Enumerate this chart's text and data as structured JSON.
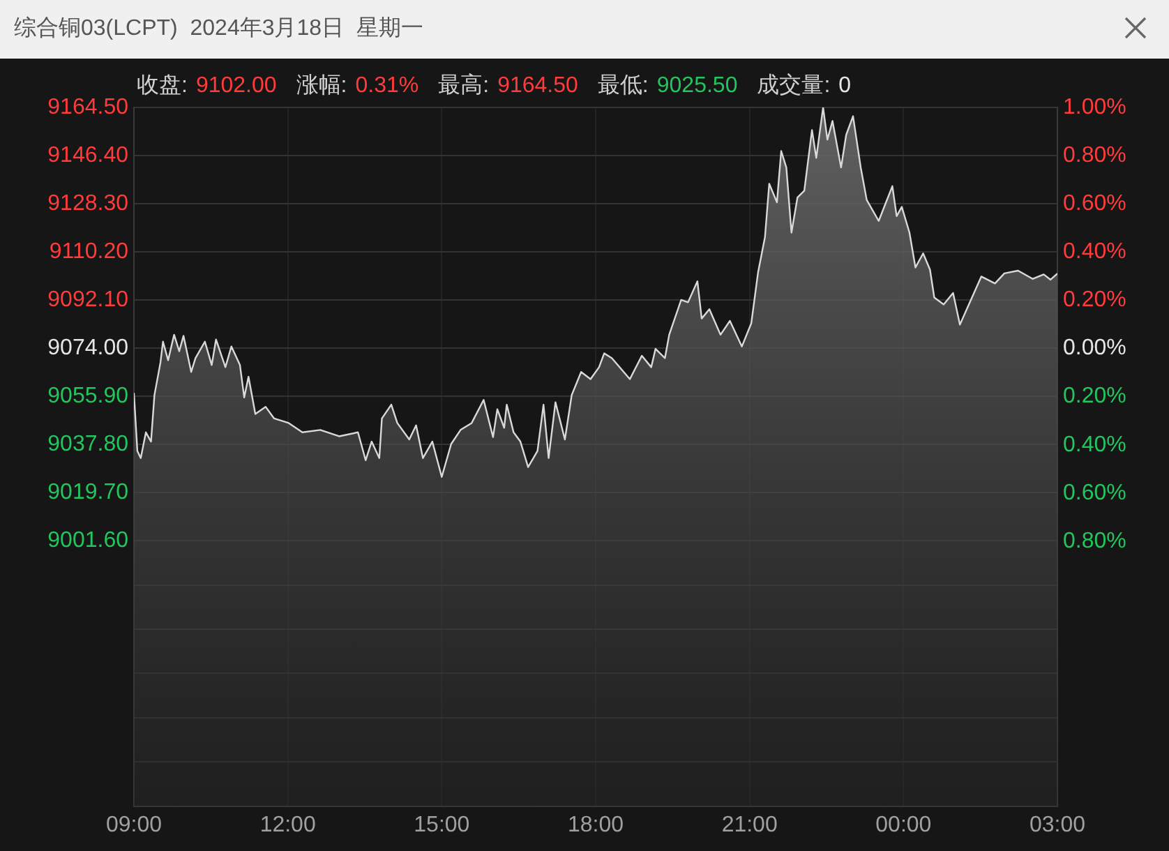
{
  "chart_data": {
    "type": "area",
    "title": "综合铜03(LCPT)  2024年3月18日  星期一",
    "annotations": [
      "收盘:",
      "9102.00",
      "涨幅:",
      "0.31%",
      "最高:",
      "9164.50",
      "最低:",
      "9025.50",
      "成交量:",
      "0"
    ],
    "x": [
      "2024-03-18T09:00",
      "2024-03-18T09:04",
      "2024-03-18T09:08",
      "2024-03-18T09:14",
      "2024-03-18T09:20",
      "2024-03-18T09:24",
      "2024-03-18T09:31",
      "2024-03-18T09:34",
      "2024-03-18T09:40",
      "2024-03-18T09:47",
      "2024-03-18T09:53",
      "2024-03-18T09:58",
      "2024-03-18T10:07",
      "2024-03-18T10:12",
      "2024-03-18T10:23",
      "2024-03-18T10:31",
      "2024-03-18T10:36",
      "2024-03-18T10:47",
      "2024-03-18T10:54",
      "2024-03-18T11:04",
      "2024-03-18T11:09",
      "2024-03-18T11:14",
      "2024-03-18T11:22",
      "2024-03-18T11:34",
      "2024-03-18T11:44",
      "2024-03-18T12:01",
      "2024-03-18T12:17",
      "2024-03-18T12:38",
      "2024-03-18T13:00",
      "2024-03-18T13:22",
      "2024-03-18T13:31",
      "2024-03-18T13:38",
      "2024-03-18T13:47",
      "2024-03-18T13:50",
      "2024-03-18T14:01",
      "2024-03-18T14:08",
      "2024-03-18T14:22",
      "2024-03-18T14:30",
      "2024-03-18T14:38",
      "2024-03-18T14:49",
      "2024-03-18T15:00",
      "2024-03-18T15:11",
      "2024-03-18T15:22",
      "2024-03-18T15:35",
      "2024-03-18T15:49",
      "2024-03-18T16:00",
      "2024-03-18T16:05",
      "2024-03-18T16:13",
      "2024-03-18T16:16",
      "2024-03-18T16:24",
      "2024-03-18T16:32",
      "2024-03-18T16:41",
      "2024-03-18T16:52",
      "2024-03-18T16:59",
      "2024-03-18T17:05",
      "2024-03-18T17:13",
      "2024-03-18T17:24",
      "2024-03-18T17:32",
      "2024-03-18T17:43",
      "2024-03-18T17:54",
      "2024-03-18T18:04",
      "2024-03-18T18:10",
      "2024-03-18T18:19",
      "2024-03-18T18:40",
      "2024-03-18T18:54",
      "2024-03-18T19:05",
      "2024-03-18T19:10",
      "2024-03-18T19:21",
      "2024-03-18T19:26",
      "2024-03-18T19:40",
      "2024-03-18T19:48",
      "2024-03-18T19:59",
      "2024-03-18T20:04",
      "2024-03-18T20:13",
      "2024-03-18T20:26",
      "2024-03-18T20:37",
      "2024-03-18T20:51",
      "2024-03-18T21:02",
      "2024-03-18T21:10",
      "2024-03-18T21:18",
      "2024-03-18T21:23",
      "2024-03-18T21:32",
      "2024-03-18T21:37",
      "2024-03-18T21:43",
      "2024-03-18T21:49",
      "2024-03-18T21:56",
      "2024-03-18T22:04",
      "2024-03-18T22:13",
      "2024-03-18T22:18",
      "2024-03-18T22:26",
      "2024-03-18T22:31",
      "2024-03-18T22:37",
      "2024-03-18T22:47",
      "2024-03-18T22:53",
      "2024-03-18T23:01",
      "2024-03-18T23:10",
      "2024-03-18T23:17",
      "2024-03-18T23:31",
      "2024-03-18T23:47",
      "2024-03-18T23:52",
      "2024-03-18T23:58",
      "2024-03-19T00:07",
      "2024-03-19T00:14",
      "2024-03-19T00:23",
      "2024-03-19T00:31",
      "2024-03-19T00:36",
      "2024-03-19T00:47",
      "2024-03-19T00:58",
      "2024-03-19T01:06",
      "2024-03-19T01:14",
      "2024-03-19T01:31",
      "2024-03-19T01:47",
      "2024-03-19T01:58",
      "2024-03-19T02:14",
      "2024-03-19T02:31",
      "2024-03-19T02:44",
      "2024-03-19T02:52",
      "2024-03-19T03:00"
    ],
    "series": [
      {
        "color": "#d9d9d9",
        "values": [
          9057.1,
          9035.3,
          9032.6,
          9042.3,
          9038.8,
          9056.3,
          9068.5,
          9076.4,
          9069.4,
          9079,
          9072.8,
          9078.6,
          9065,
          9070.2,
          9076.4,
          9067.6,
          9077.2,
          9066.8,
          9074.6,
          9067.6,
          9055.4,
          9063.2,
          9049.2,
          9051.9,
          9047.5,
          9045.8,
          9042.3,
          9043.2,
          9040.8,
          9042.3,
          9031.8,
          9038.8,
          9032.6,
          9047.5,
          9052.7,
          9045.8,
          9039.6,
          9044.9,
          9032.6,
          9038.8,
          9025.5,
          9037.9,
          9043.2,
          9045.8,
          9054.5,
          9040.5,
          9051,
          9044,
          9052.7,
          9042.3,
          9038.8,
          9029.2,
          9035.3,
          9052.7,
          9032.6,
          9053.6,
          9039.6,
          9056.3,
          9065,
          9062.3,
          9066.8,
          9072,
          9070.2,
          9062.3,
          9071.1,
          9066.8,
          9073.7,
          9070.2,
          9079,
          9092.1,
          9091.2,
          9099.1,
          9085.1,
          9088.6,
          9079,
          9084.2,
          9074.6,
          9083.3,
          9102.6,
          9115.7,
          9135.8,
          9128.8,
          9148.1,
          9141.9,
          9117.4,
          9130.6,
          9133.2,
          9156,
          9145.5,
          9164.5,
          9152.4,
          9159.4,
          9141.9,
          9154.2,
          9161.2,
          9141.9,
          9129.7,
          9121.8,
          9134.9,
          9123.6,
          9127.1,
          9117.4,
          9104.3,
          9109.6,
          9103.5,
          9093,
          9090.4,
          9094.7,
          9082.8,
          9088.6,
          9100.9,
          9098.3,
          9102.1,
          9103.1,
          9100,
          9101.7,
          9099.7,
          9102
        ]
      }
    ],
    "xlim": [
      "2024-03-18T09:00",
      "2024-03-19T03:00"
    ],
    "xticks": [
      {
        "value": "2024-03-18T09:00",
        "label": "09:00"
      },
      {
        "value": "2024-03-18T12:00",
        "label": "12:00"
      },
      {
        "value": "2024-03-18T15:00",
        "label": "15:00"
      },
      {
        "value": "2024-03-18T18:00",
        "label": "18:00"
      },
      {
        "value": "2024-03-18T21:00",
        "label": "21:00"
      },
      {
        "value": "2024-03-19T00:00",
        "label": "00:00"
      },
      {
        "value": "2024-03-19T03:00",
        "label": "03:00"
      }
    ],
    "ylim": [
      8901.6,
      9164.5
    ],
    "yticks": [
      {
        "value": 9164.5,
        "label": "9164.50"
      },
      {
        "value": 9146.4,
        "label": "9146.40"
      },
      {
        "value": 9128.3,
        "label": "9128.30"
      },
      {
        "value": 9110.2,
        "label": "9110.20"
      },
      {
        "value": 9092.1,
        "label": "9092.10"
      },
      {
        "value": 9074,
        "label": "9074.00"
      },
      {
        "value": 9055.9,
        "label": "9055.90"
      },
      {
        "value": 9037.8,
        "label": "9037.80"
      },
      {
        "value": 9019.7,
        "label": "9019.70"
      },
      {
        "value": 9001.6,
        "label": "9001.60"
      },
      {
        "value": 8984.9,
        "label": null
      },
      {
        "value": 8968.3,
        "label": null
      },
      {
        "value": 8951.6,
        "label": null
      },
      {
        "value": 8934.9,
        "label": null
      },
      {
        "value": 8918.3,
        "label": null
      }
    ],
    "y2lim": [
      -1.9,
      1.0
    ],
    "y2ticks": [
      {
        "value": 1.0,
        "label": "1.00%"
      },
      {
        "value": 0.8,
        "label": "0.80%"
      },
      {
        "value": 0.6,
        "label": "0.60%"
      },
      {
        "value": 0.4,
        "label": "0.40%"
      },
      {
        "value": 0.2,
        "label": "0.20%"
      },
      {
        "value": 0,
        "label": "0.00%"
      },
      {
        "value": -0.2,
        "label": "0.20%"
      },
      {
        "value": -0.4,
        "label": "0.40%"
      },
      {
        "value": -0.6,
        "label": "0.60%"
      },
      {
        "value": -0.8,
        "label": "0.80%"
      }
    ],
    "grid": true,
    "legend": false,
    "marker": "none",
    "line_style": "solid"
  }
}
